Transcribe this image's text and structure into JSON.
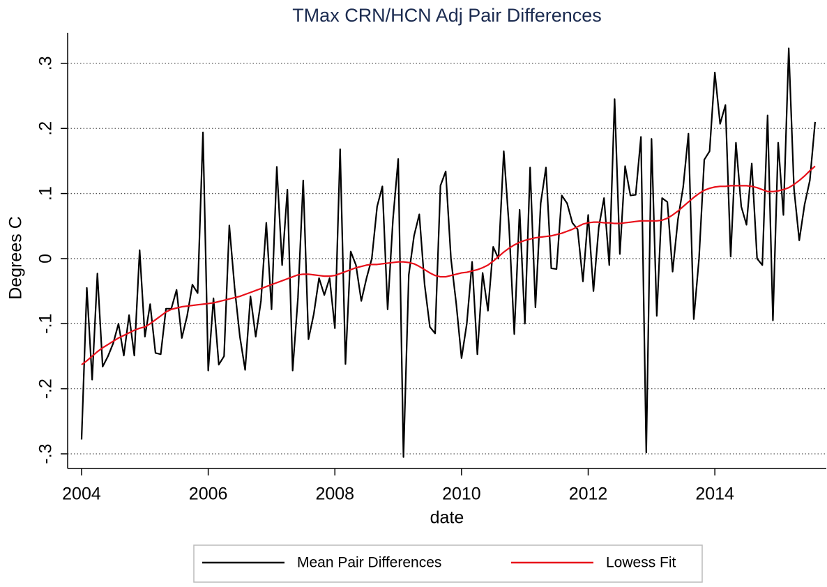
{
  "chart_data": {
    "type": "line",
    "title": "TMax CRN/HCN Adj Pair Differences",
    "x_label": "date",
    "y_label": "Degrees C",
    "x": [
      2004,
      2004.083,
      2004.167,
      2004.25,
      2004.333,
      2004.417,
      2004.5,
      2004.583,
      2004.667,
      2004.75,
      2004.833,
      2004.917,
      2005,
      2005.083,
      2005.167,
      2005.25,
      2005.333,
      2005.417,
      2005.5,
      2005.583,
      2005.667,
      2005.75,
      2005.833,
      2005.917,
      2006,
      2006.083,
      2006.167,
      2006.25,
      2006.333,
      2006.417,
      2006.5,
      2006.583,
      2006.667,
      2006.75,
      2006.833,
      2006.917,
      2007,
      2007.083,
      2007.167,
      2007.25,
      2007.333,
      2007.417,
      2007.5,
      2007.583,
      2007.667,
      2007.75,
      2007.833,
      2007.917,
      2008,
      2008.083,
      2008.167,
      2008.25,
      2008.333,
      2008.417,
      2008.5,
      2008.583,
      2008.667,
      2008.75,
      2008.833,
      2008.917,
      2009,
      2009.083,
      2009.167,
      2009.25,
      2009.333,
      2009.417,
      2009.5,
      2009.583,
      2009.667,
      2009.75,
      2009.833,
      2009.917,
      2010,
      2010.083,
      2010.167,
      2010.25,
      2010.333,
      2010.417,
      2010.5,
      2010.583,
      2010.667,
      2010.75,
      2010.833,
      2010.917,
      2011,
      2011.083,
      2011.167,
      2011.25,
      2011.333,
      2011.417,
      2011.5,
      2011.583,
      2011.667,
      2011.75,
      2011.833,
      2011.917,
      2012,
      2012.083,
      2012.167,
      2012.25,
      2012.333,
      2012.417,
      2012.5,
      2012.583,
      2012.667,
      2012.75,
      2012.833,
      2012.917,
      2013,
      2013.083,
      2013.167,
      2013.25,
      2013.333,
      2013.417,
      2013.5,
      2013.583,
      2013.667,
      2013.75,
      2013.833,
      2013.917,
      2014,
      2014.083,
      2014.167,
      2014.25,
      2014.333,
      2014.417,
      2014.5,
      2014.583,
      2014.667,
      2014.75,
      2014.833,
      2014.917,
      2015,
      2015.083,
      2015.167,
      2015.25,
      2015.333,
      2015.417,
      2015.5,
      2015.583
    ],
    "series": [
      {
        "name": "Mean Pair Differences",
        "color": "#000000",
        "values": [
          -0.278,
          -0.045,
          -0.186,
          -0.023,
          -0.166,
          -0.15,
          -0.13,
          -0.1,
          -0.149,
          -0.087,
          -0.149,
          0.013,
          -0.12,
          -0.07,
          -0.145,
          -0.147,
          -0.077,
          -0.077,
          -0.048,
          -0.122,
          -0.088,
          -0.04,
          -0.053,
          0.194,
          -0.172,
          -0.061,
          -0.163,
          -0.15,
          0.051,
          -0.045,
          -0.12,
          -0.171,
          -0.058,
          -0.12,
          -0.065,
          0.055,
          -0.078,
          0.141,
          -0.01,
          0.106,
          -0.172,
          -0.06,
          0.12,
          -0.124,
          -0.085,
          -0.03,
          -0.056,
          -0.03,
          -0.107,
          0.168,
          -0.162,
          0.011,
          -0.01,
          -0.065,
          -0.03,
          0,
          0.08,
          0.111,
          -0.078,
          0.06,
          0.153,
          -0.305,
          -0.025,
          0.035,
          0.068,
          -0.04,
          -0.105,
          -0.115,
          0.112,
          0.134,
          0,
          -0.07,
          -0.153,
          -0.1,
          -0.005,
          -0.147,
          -0.022,
          -0.08,
          0.018,
          0,
          0.165,
          0.05,
          -0.116,
          0.075,
          -0.1,
          0.14,
          -0.075,
          0.085,
          0.14,
          -0.015,
          -0.016,
          0.097,
          0.085,
          0.055,
          0.045,
          -0.035,
          0.067,
          -0.05,
          0.048,
          0.093,
          -0.01,
          0.245,
          0.007,
          0.142,
          0.097,
          0.098,
          0.187,
          -0.298,
          0.184,
          -0.088,
          0.093,
          0.087,
          -0.02,
          0.06,
          0.11,
          0.192,
          -0.093,
          0,
          0.152,
          0.165,
          0.286,
          0.207,
          0.236,
          0.003,
          0.178,
          0.08,
          0.052,
          0.146,
          0,
          -0.01,
          0.22,
          -0.095,
          0.178,
          0.067,
          0.323,
          0.107,
          0.028,
          0.083,
          0.12,
          0.21
        ]
      },
      {
        "name": "Lowess Fit",
        "color": "#e8101a",
        "values": [
          -0.163,
          -0.157,
          -0.15,
          -0.143,
          -0.137,
          -0.132,
          -0.127,
          -0.122,
          -0.118,
          -0.114,
          -0.11,
          -0.107,
          -0.105,
          -0.1,
          -0.094,
          -0.088,
          -0.082,
          -0.078,
          -0.076,
          -0.074,
          -0.073,
          -0.072,
          -0.071,
          -0.07,
          -0.069,
          -0.068,
          -0.066,
          -0.064,
          -0.062,
          -0.06,
          -0.058,
          -0.055,
          -0.052,
          -0.049,
          -0.046,
          -0.043,
          -0.04,
          -0.037,
          -0.034,
          -0.031,
          -0.028,
          -0.025,
          -0.024,
          -0.024,
          -0.025,
          -0.026,
          -0.027,
          -0.027,
          -0.026,
          -0.023,
          -0.02,
          -0.017,
          -0.014,
          -0.012,
          -0.01,
          -0.009,
          -0.009,
          -0.008,
          -0.007,
          -0.006,
          -0.005,
          -0.005,
          -0.006,
          -0.008,
          -0.012,
          -0.017,
          -0.022,
          -0.026,
          -0.028,
          -0.028,
          -0.026,
          -0.024,
          -0.022,
          -0.021,
          -0.019,
          -0.017,
          -0.014,
          -0.01,
          -0.004,
          0.003,
          0.01,
          0.016,
          0.021,
          0.025,
          0.028,
          0.03,
          0.032,
          0.033,
          0.034,
          0.035,
          0.037,
          0.039,
          0.042,
          0.045,
          0.049,
          0.053,
          0.055,
          0.056,
          0.056,
          0.055,
          0.055,
          0.054,
          0.054,
          0.055,
          0.056,
          0.057,
          0.058,
          0.058,
          0.058,
          0.058,
          0.059,
          0.062,
          0.067,
          0.073,
          0.08,
          0.087,
          0.094,
          0.1,
          0.105,
          0.108,
          0.11,
          0.111,
          0.111,
          0.112,
          0.112,
          0.112,
          0.112,
          0.111,
          0.109,
          0.106,
          0.103,
          0.103,
          0.104,
          0.106,
          0.109,
          0.114,
          0.12,
          0.127,
          0.135,
          0.142
        ]
      }
    ],
    "xlim": [
      2003.78,
      2015.76
    ],
    "xticks": [
      2004,
      2006,
      2008,
      2010,
      2012,
      2014
    ],
    "ylim": [
      -0.3225,
      0.347
    ],
    "yticks": [
      {
        "value": -0.3,
        "label": "-.3"
      },
      {
        "value": -0.2,
        "label": "-.2"
      },
      {
        "value": -0.1,
        "label": "-.1"
      },
      0,
      {
        "value": 0.1,
        "label": ".1"
      },
      {
        "value": 0.2,
        "label": ".2"
      },
      {
        "value": 0.3,
        "label": ".3"
      }
    ],
    "grid": true,
    "legend": "bottom"
  }
}
